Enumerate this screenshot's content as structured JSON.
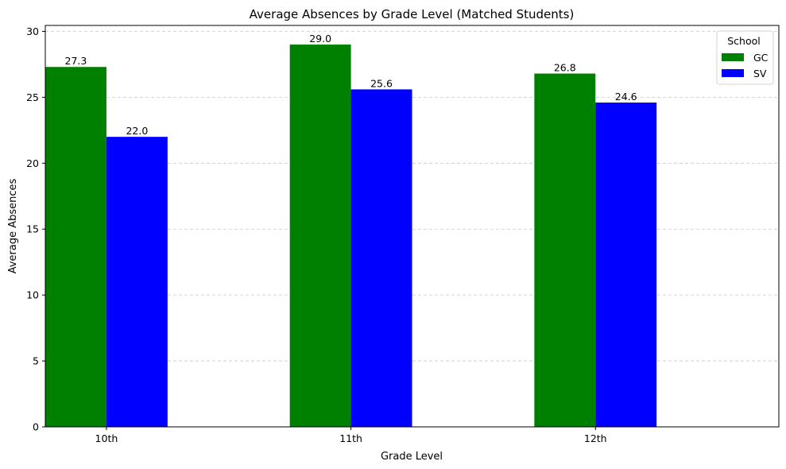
{
  "chart_data": {
    "type": "bar",
    "title": "Average Absences by Grade Level (Matched Students)",
    "xlabel": "Grade Level",
    "ylabel": "Average Absences",
    "categories": [
      "10th",
      "11th",
      "12th"
    ],
    "series": [
      {
        "name": "GC",
        "color": "#008000",
        "values": [
          27.3,
          29.0,
          26.8
        ],
        "labels": [
          "27.3",
          "29.0",
          "26.8"
        ]
      },
      {
        "name": "SV",
        "color": "#0000ff",
        "values": [
          22.0,
          25.6,
          24.6
        ],
        "labels": [
          "22.0",
          "25.6",
          "24.6"
        ]
      }
    ],
    "ylim": [
      0,
      30.45
    ],
    "yticks": [
      0,
      5,
      10,
      15,
      20,
      25,
      30
    ],
    "grid": "y-dashed",
    "legend": {
      "title": "School",
      "position": "top-right"
    }
  }
}
